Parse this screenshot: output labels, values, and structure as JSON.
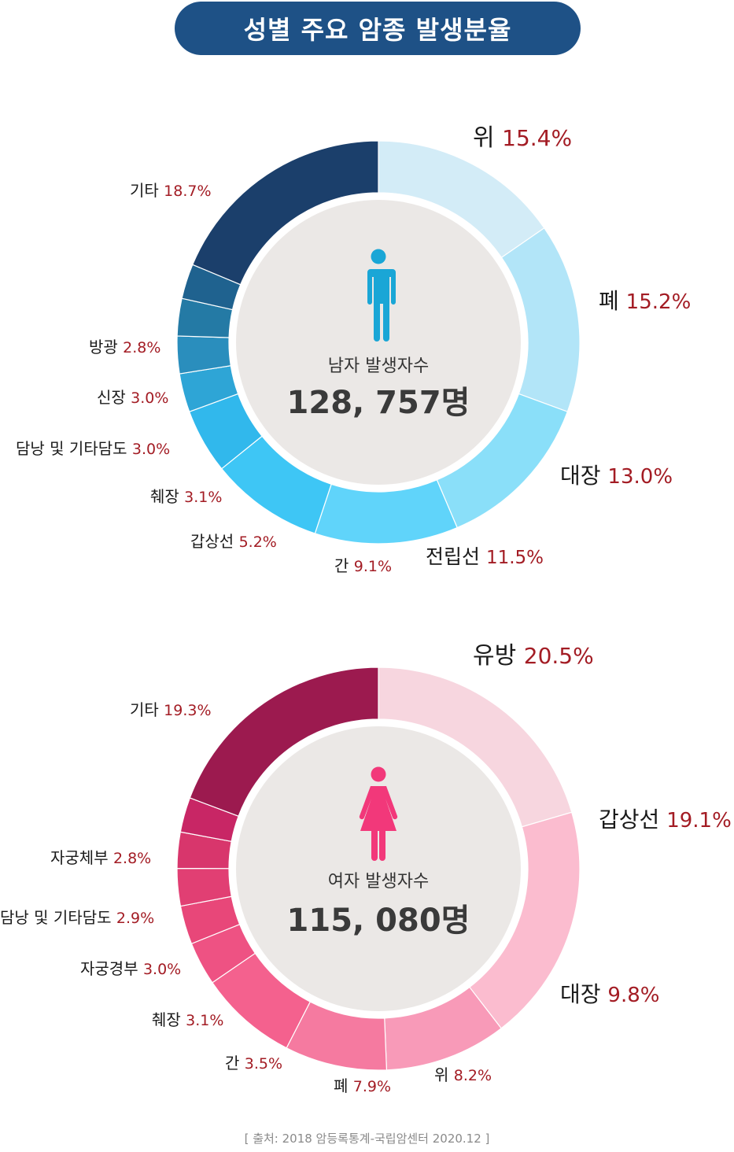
{
  "title": "성별 주요 암종 발생분율",
  "source": "[ 출처: 2018 암등록통계-국립암센터 2020.12 ]",
  "colors": {
    "title_bg": "#1e5186",
    "value_text": "#a31c24",
    "label_text": "#1a1a1a",
    "center_bg": "#ebe8e6"
  },
  "chart_data": [
    {
      "type": "pie",
      "subtype": "donut",
      "center_label": "남자 발생자수",
      "center_value": "128, 757명",
      "icon": "male-person-icon",
      "icon_color": "#1aa6d6",
      "slices": [
        {
          "label": "위",
          "pct_text": "15.4%",
          "value": 15.4,
          "color": "#d3ecf7"
        },
        {
          "label": "폐",
          "pct_text": "15.2%",
          "value": 15.2,
          "color": "#b2e5f8"
        },
        {
          "label": "대장",
          "pct_text": "13.0%",
          "value": 13.0,
          "color": "#8adff9"
        },
        {
          "label": "전립선",
          "pct_text": "11.5%",
          "value": 11.5,
          "color": "#60d4fa"
        },
        {
          "label": "간",
          "pct_text": "9.1%",
          "value": 9.1,
          "color": "#3ec6f5"
        },
        {
          "label": "갑상선",
          "pct_text": "5.2%",
          "value": 5.2,
          "color": "#31b8ec"
        },
        {
          "label": "췌장",
          "pct_text": "3.1%",
          "value": 3.1,
          "color": "#2ea5d6"
        },
        {
          "label": "담낭 및 기타담도",
          "pct_text": "3.0%",
          "value": 3.0,
          "color": "#2a8ebd"
        },
        {
          "label": "신장",
          "pct_text": "3.0%",
          "value": 3.0,
          "color": "#247aa5"
        },
        {
          "label": "방광",
          "pct_text": "2.8%",
          "value": 2.8,
          "color": "#1f628f"
        },
        {
          "label": "기타",
          "pct_text": "18.7%",
          "value": 18.7,
          "color": "#1b3f6b"
        }
      ]
    },
    {
      "type": "pie",
      "subtype": "donut",
      "center_label": "여자 발생자수",
      "center_value": "115, 080명",
      "icon": "female-person-icon",
      "icon_color": "#f2387a",
      "slices": [
        {
          "label": "유방",
          "pct_text": "20.5%",
          "value": 20.5,
          "color": "#f7d6df"
        },
        {
          "label": "갑상선",
          "pct_text": "19.1%",
          "value": 19.1,
          "color": "#fbbccf"
        },
        {
          "label": "대장",
          "pct_text": "9.8%",
          "value": 9.8,
          "color": "#f89ab8"
        },
        {
          "label": "위",
          "pct_text": "8.2%",
          "value": 8.2,
          "color": "#f57aa0"
        },
        {
          "label": "폐",
          "pct_text": "7.9%",
          "value": 7.9,
          "color": "#f4618e"
        },
        {
          "label": "간",
          "pct_text": "3.5%",
          "value": 3.5,
          "color": "#ee5283"
        },
        {
          "label": "췌장",
          "pct_text": "3.1%",
          "value": 3.1,
          "color": "#e84779"
        },
        {
          "label": "자궁경부",
          "pct_text": "3.0%",
          "value": 3.0,
          "color": "#e13f73"
        },
        {
          "label": "담낭 및 기타담도",
          "pct_text": "2.9%",
          "value": 2.9,
          "color": "#d8366c"
        },
        {
          "label": "자궁체부",
          "pct_text": "2.8%",
          "value": 2.8,
          "color": "#c82665"
        },
        {
          "label": "기타",
          "pct_text": "19.3%",
          "value": 19.3,
          "color": "#9c1a4f"
        }
      ]
    }
  ]
}
